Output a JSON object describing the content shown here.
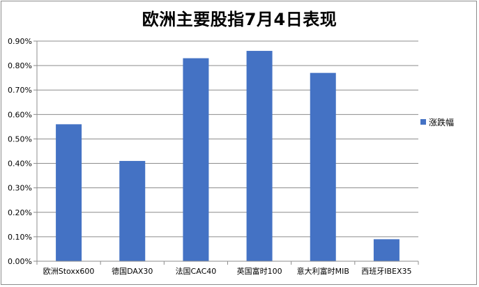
{
  "chart_data": {
    "type": "bar",
    "title": "欧洲主要股指7月4日表现",
    "categories": [
      "欧洲Stoxx600",
      "德国DAX30",
      "法国CAC40",
      "英国富时100",
      "意大利富时MIB",
      "西班牙IBEX35"
    ],
    "series": [
      {
        "name": "涨跌幅",
        "values": [
          0.56,
          0.41,
          0.83,
          0.86,
          0.77,
          0.09
        ],
        "color": "#4472C4"
      }
    ],
    "yticks": [
      "0.00%",
      "0.10%",
      "0.20%",
      "0.30%",
      "0.40%",
      "0.50%",
      "0.60%",
      "0.70%",
      "0.80%",
      "0.90%"
    ],
    "ylim": [
      0,
      0.9
    ],
    "grid": true,
    "legend_position": "right"
  }
}
